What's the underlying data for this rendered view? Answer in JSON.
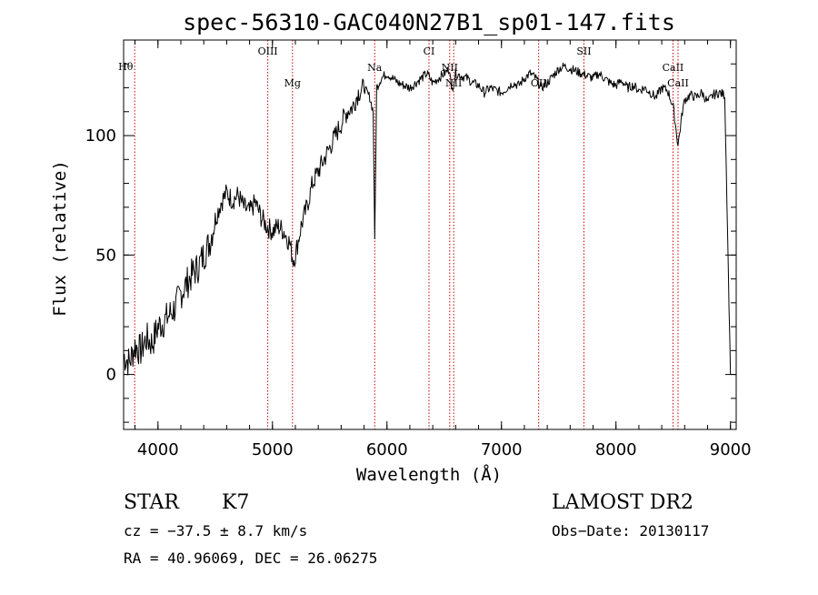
{
  "chart_data": {
    "type": "line",
    "title": "spec-56310-GAC040N27B1_sp01-147.fits",
    "xlabel": "Wavelength (Å)",
    "ylabel": "Flux (relative)",
    "xlim": [
      3700,
      9050
    ],
    "ylim": [
      -23,
      140
    ],
    "xticks": [
      4000,
      5000,
      6000,
      7000,
      8000,
      9000
    ],
    "yticks": [
      0,
      50,
      100
    ],
    "grid": false,
    "line_color": "#000000",
    "marker_color": "#cc0000",
    "spectrum": {
      "x": [
        3700,
        3750,
        3800,
        3850,
        3900,
        3950,
        4000,
        4050,
        4100,
        4150,
        4200,
        4250,
        4300,
        4350,
        4400,
        4450,
        4500,
        4550,
        4600,
        4650,
        4700,
        4750,
        4800,
        4850,
        4900,
        4950,
        5000,
        5050,
        5100,
        5150,
        5180,
        5200,
        5250,
        5300,
        5350,
        5400,
        5450,
        5500,
        5550,
        5600,
        5650,
        5700,
        5750,
        5800,
        5850,
        5880,
        5893,
        5910,
        5950,
        6000,
        6050,
        6100,
        6150,
        6200,
        6250,
        6300,
        6350,
        6400,
        6450,
        6500,
        6550,
        6563,
        6600,
        6650,
        6700,
        6750,
        6800,
        6850,
        6900,
        6950,
        7000,
        7050,
        7100,
        7150,
        7200,
        7250,
        7300,
        7350,
        7400,
        7450,
        7500,
        7550,
        7600,
        7650,
        7700,
        7750,
        7800,
        7850,
        7900,
        7950,
        8000,
        8050,
        8100,
        8150,
        8200,
        8250,
        8300,
        8350,
        8400,
        8450,
        8500,
        8542,
        8580,
        8600,
        8650,
        8700,
        8750,
        8800,
        8850,
        8900,
        8950,
        9000
      ],
      "y": [
        8,
        5,
        12,
        10,
        15,
        13,
        20,
        22,
        25,
        28,
        34,
        38,
        42,
        45,
        50,
        55,
        65,
        72,
        76,
        73,
        75,
        70,
        68,
        72,
        66,
        62,
        60,
        62,
        60,
        55,
        48,
        50,
        62,
        70,
        80,
        85,
        90,
        95,
        100,
        105,
        110,
        112,
        118,
        120,
        116,
        110,
        55,
        120,
        124,
        126,
        124,
        122,
        121,
        120,
        122,
        124,
        126,
        122,
        124,
        126,
        128,
        118,
        126,
        125,
        124,
        122,
        121,
        118,
        120,
        119,
        118,
        120,
        122,
        121,
        124,
        126,
        124,
        120,
        122,
        125,
        128,
        129,
        128,
        127,
        126,
        125,
        124,
        126,
        124,
        122,
        121,
        123,
        120,
        121,
        119,
        120,
        118,
        116,
        120,
        119,
        112,
        96,
        110,
        115,
        117,
        116,
        118,
        114,
        117,
        118,
        117,
        0
      ]
    },
    "lines": [
      {
        "name": "Hθ",
        "x": 3797,
        "label_pos": "left-top"
      },
      {
        "name": "OIII",
        "x": 4959,
        "label_pos": "top"
      },
      {
        "name": "Mg",
        "x": 5175,
        "label_pos": "mid"
      },
      {
        "name": "Na",
        "x": 5893,
        "label_pos": "top2"
      },
      {
        "name": "CI",
        "x": 6367,
        "label_pos": "top"
      },
      {
        "name": "NII",
        "x": 6548,
        "label_pos": "top2"
      },
      {
        "name": "NII",
        "x": 6583,
        "label_pos": "mid"
      },
      {
        "name": "OII",
        "x": 7325,
        "label_pos": "mid"
      },
      {
        "name": "SII",
        "x": 7720,
        "label_pos": "top"
      },
      {
        "name": "CaII",
        "x": 8498,
        "label_pos": "top2"
      },
      {
        "name": "CaII",
        "x": 8542,
        "label_pos": "mid"
      }
    ]
  },
  "info": {
    "class": "STAR",
    "subclass": "K7",
    "survey": "LAMOST DR2",
    "cz": "cz = −37.5 ± 8.7 km/s",
    "obs_date": "Obs−Date: 20130117",
    "coords": "RA =  40.96069, DEC =  26.06275"
  }
}
